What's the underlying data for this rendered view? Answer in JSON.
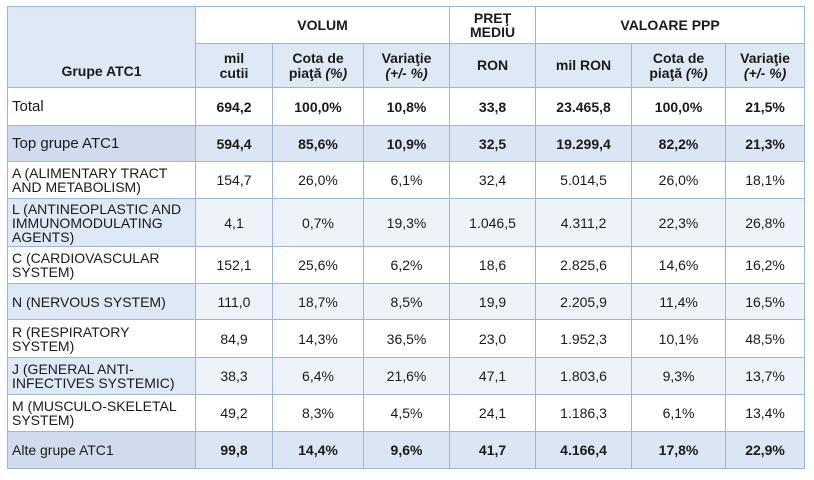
{
  "header": {
    "row_label": "Grupe ATC1",
    "volum": "VOLUM",
    "pret_line1": "PREŢ",
    "pret_line2": "MEDIU",
    "valoare": "VALOARE PPP",
    "sub": {
      "mil_cutii_1": "mil",
      "mil_cutii_2": "cutii",
      "cota1_1": "Cota de",
      "cota1_2": "piaţă",
      "cota1_3": "(%)",
      "var1_1": "Variaţie",
      "var1_2": "(+/- %)",
      "ron": "RON",
      "mil_ron": "mil RON",
      "cota2_1": "Cota de",
      "cota2_2": "piaţă",
      "cota2_3": "(%)",
      "var2_1": "Variaţie",
      "var2_2": "(+/- %)"
    }
  },
  "rows": [
    {
      "label": "Total",
      "values": [
        "694,2",
        "100,0%",
        "10,8%",
        "33,8",
        "23.465,8",
        "100,0%",
        "21,5%"
      ]
    },
    {
      "label": "Top grupe ATC1",
      "values": [
        "594,4",
        "85,6%",
        "10,9%",
        "32,5",
        "19.299,4",
        "82,2%",
        "21,3%"
      ]
    },
    {
      "label": "A (ALIMENTARY TRACT AND METABOLISM)",
      "values": [
        "154,7",
        "26,0%",
        "6,1%",
        "32,4",
        "5.014,5",
        "26,0%",
        "18,1%"
      ]
    },
    {
      "label": "L (ANTINEOPLASTIC AND IMMUNOMODULATING AGENTS)",
      "values": [
        "4,1",
        "0,7%",
        "19,3%",
        "1.046,5",
        "4.311,2",
        "22,3%",
        "26,8%"
      ]
    },
    {
      "label": "C (CARDIOVASCULAR SYSTEM)",
      "values": [
        "152,1",
        "25,6%",
        "6,2%",
        "18,6",
        "2.825,6",
        "14,6%",
        "16,2%"
      ]
    },
    {
      "label": "N (NERVOUS SYSTEM)",
      "values": [
        "111,0",
        "18,7%",
        "8,5%",
        "19,9",
        "2.205,9",
        "11,4%",
        "16,5%"
      ]
    },
    {
      "label": "R (RESPIRATORY SYSTEM)",
      "values": [
        "84,9",
        "14,3%",
        "36,5%",
        "23,0",
        "1.952,3",
        "10,1%",
        "48,5%"
      ]
    },
    {
      "label": "J (GENERAL ANTI-INFECTIVES SYSTEMIC)",
      "values": [
        "38,3",
        "6,4%",
        "21,6%",
        "47,1",
        "1.803,6",
        "9,3%",
        "13,7%"
      ]
    },
    {
      "label": "M (MUSCULO-SKELETAL SYSTEM)",
      "values": [
        "49,2",
        "8,3%",
        "4,5%",
        "24,1",
        "1.186,3",
        "6,1%",
        "13,4%"
      ]
    },
    {
      "label": "Alte grupe ATC1",
      "values": [
        "99,8",
        "14,4%",
        "9,6%",
        "41,7",
        "4.166,4",
        "17,8%",
        "22,9%"
      ]
    }
  ]
}
